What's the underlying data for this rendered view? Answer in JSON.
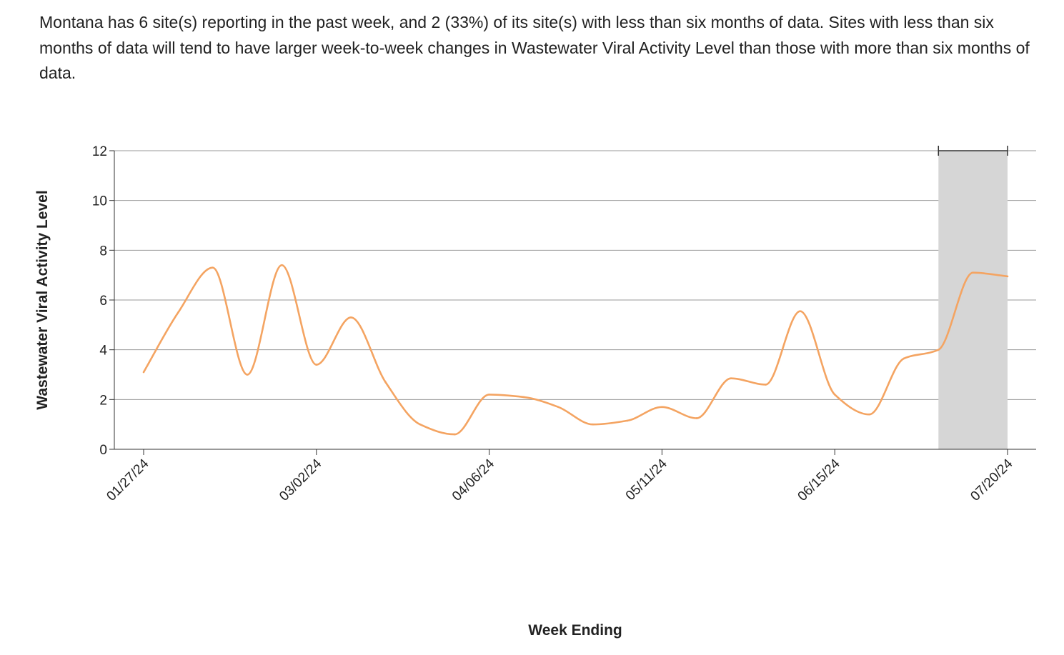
{
  "description": "Montana has 6 site(s) reporting in the past week, and 2 (33%) of its site(s) with less than six months of data. Sites with less than six months of data will tend to have larger week-to-week changes in Wastewater Viral Activity Level than those with more than six months of data.",
  "chart_data": {
    "type": "line",
    "title": "",
    "xlabel": "Week Ending",
    "ylabel": "Wastewater Viral Activity Level",
    "ylim": [
      0,
      12
    ],
    "y_ticks": [
      0,
      2,
      4,
      6,
      8,
      10,
      12
    ],
    "x_tick_labels": [
      "01/27/24",
      "03/02/24",
      "04/06/24",
      "05/11/24",
      "06/15/24",
      "07/20/24"
    ],
    "grid": "horizontal",
    "highlight_range": [
      "07/06/24",
      "07/20/24"
    ],
    "colors": {
      "line": "#f4a462",
      "highlight": "#d6d6d6",
      "grid": "#9a9a9a",
      "axis": "#333333"
    },
    "series": [
      {
        "x": [
          "01/27/24",
          "02/03/24",
          "02/10/24",
          "02/17/24",
          "02/24/24",
          "03/02/24",
          "03/09/24",
          "03/16/24",
          "03/23/24",
          "03/30/24",
          "04/06/24",
          "04/13/24",
          "04/20/24",
          "04/27/24",
          "05/04/24",
          "05/11/24",
          "05/18/24",
          "05/25/24",
          "06/01/24",
          "06/08/24",
          "06/15/24",
          "06/22/24",
          "06/29/24",
          "07/06/24",
          "07/13/24",
          "07/20/24"
        ],
        "values": [
          3.1,
          5.5,
          7.3,
          3.0,
          7.4,
          3.4,
          5.3,
          2.7,
          1.0,
          0.6,
          2.2,
          2.1,
          1.7,
          1.0,
          1.15,
          1.7,
          1.25,
          2.85,
          2.6,
          5.55,
          2.2,
          1.4,
          3.65,
          4.0,
          7.1,
          6.95
        ]
      }
    ]
  }
}
